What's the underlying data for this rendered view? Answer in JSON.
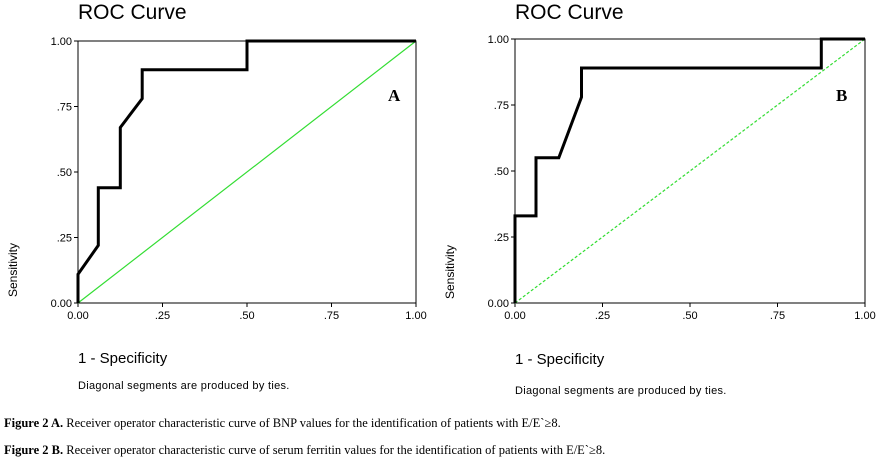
{
  "chart_data": [
    {
      "type": "line",
      "title": "ROC Curve",
      "panel_label": "A",
      "xlabel": "1 - Specificity",
      "ylabel": "Sensitivity",
      "note": "Diagonal segments are produced by ties.",
      "xlim": [
        0,
        1
      ],
      "ylim": [
        0,
        1
      ],
      "x_ticks": [
        "0.00",
        ".25",
        ".50",
        ".75",
        "1.00"
      ],
      "y_ticks": [
        "0.00",
        ".25",
        ".50",
        ".75",
        "1.00"
      ],
      "series": [
        {
          "color": "#000000",
          "points": [
            [
              0,
              0
            ],
            [
              0,
              0.11
            ],
            [
              0.06,
              0.22
            ],
            [
              0.06,
              0.44
            ],
            [
              0.125,
              0.44
            ],
            [
              0.125,
              0.67
            ],
            [
              0.19,
              0.78
            ],
            [
              0.19,
              0.89
            ],
            [
              0.5,
              0.89
            ],
            [
              0.5,
              1.0
            ],
            [
              1.0,
              1.0
            ]
          ]
        },
        {
          "color": "#33dd33",
          "points": [
            [
              0,
              0
            ],
            [
              1,
              1
            ]
          ]
        }
      ]
    },
    {
      "type": "line",
      "title": "ROC Curve",
      "panel_label": "B",
      "xlabel": "1 - Specificity",
      "ylabel": "Sensitivity",
      "note": "Diagonal segments are produced by ties.",
      "xlim": [
        0,
        1
      ],
      "ylim": [
        0,
        1
      ],
      "x_ticks": [
        "0.00",
        ".25",
        ".50",
        ".75",
        "1.00"
      ],
      "y_ticks": [
        "0.00",
        ".25",
        ".50",
        ".75",
        "1.00"
      ],
      "series": [
        {
          "color": "#000000",
          "points": [
            [
              0,
              0
            ],
            [
              0,
              0.33
            ],
            [
              0.06,
              0.33
            ],
            [
              0.06,
              0.55
            ],
            [
              0.125,
              0.55
            ],
            [
              0.19,
              0.78
            ],
            [
              0.19,
              0.89
            ],
            [
              0.875,
              0.89
            ],
            [
              0.875,
              1.0
            ],
            [
              1.0,
              1.0
            ]
          ]
        },
        {
          "color": "#33dd33",
          "dashed": true,
          "points": [
            [
              0,
              0
            ],
            [
              1,
              1
            ]
          ]
        }
      ]
    }
  ],
  "captions": [
    {
      "bold": "Figure 2 A.",
      "text": " Receiver operator characteristic curve of  BNP values for the identification of patients with E/E`≥8."
    },
    {
      "bold": "Figure 2 B.",
      "text": " Receiver operator  characteristic curve of  serum ferritin  values for the identification of patients with  E/E`≥8."
    }
  ]
}
